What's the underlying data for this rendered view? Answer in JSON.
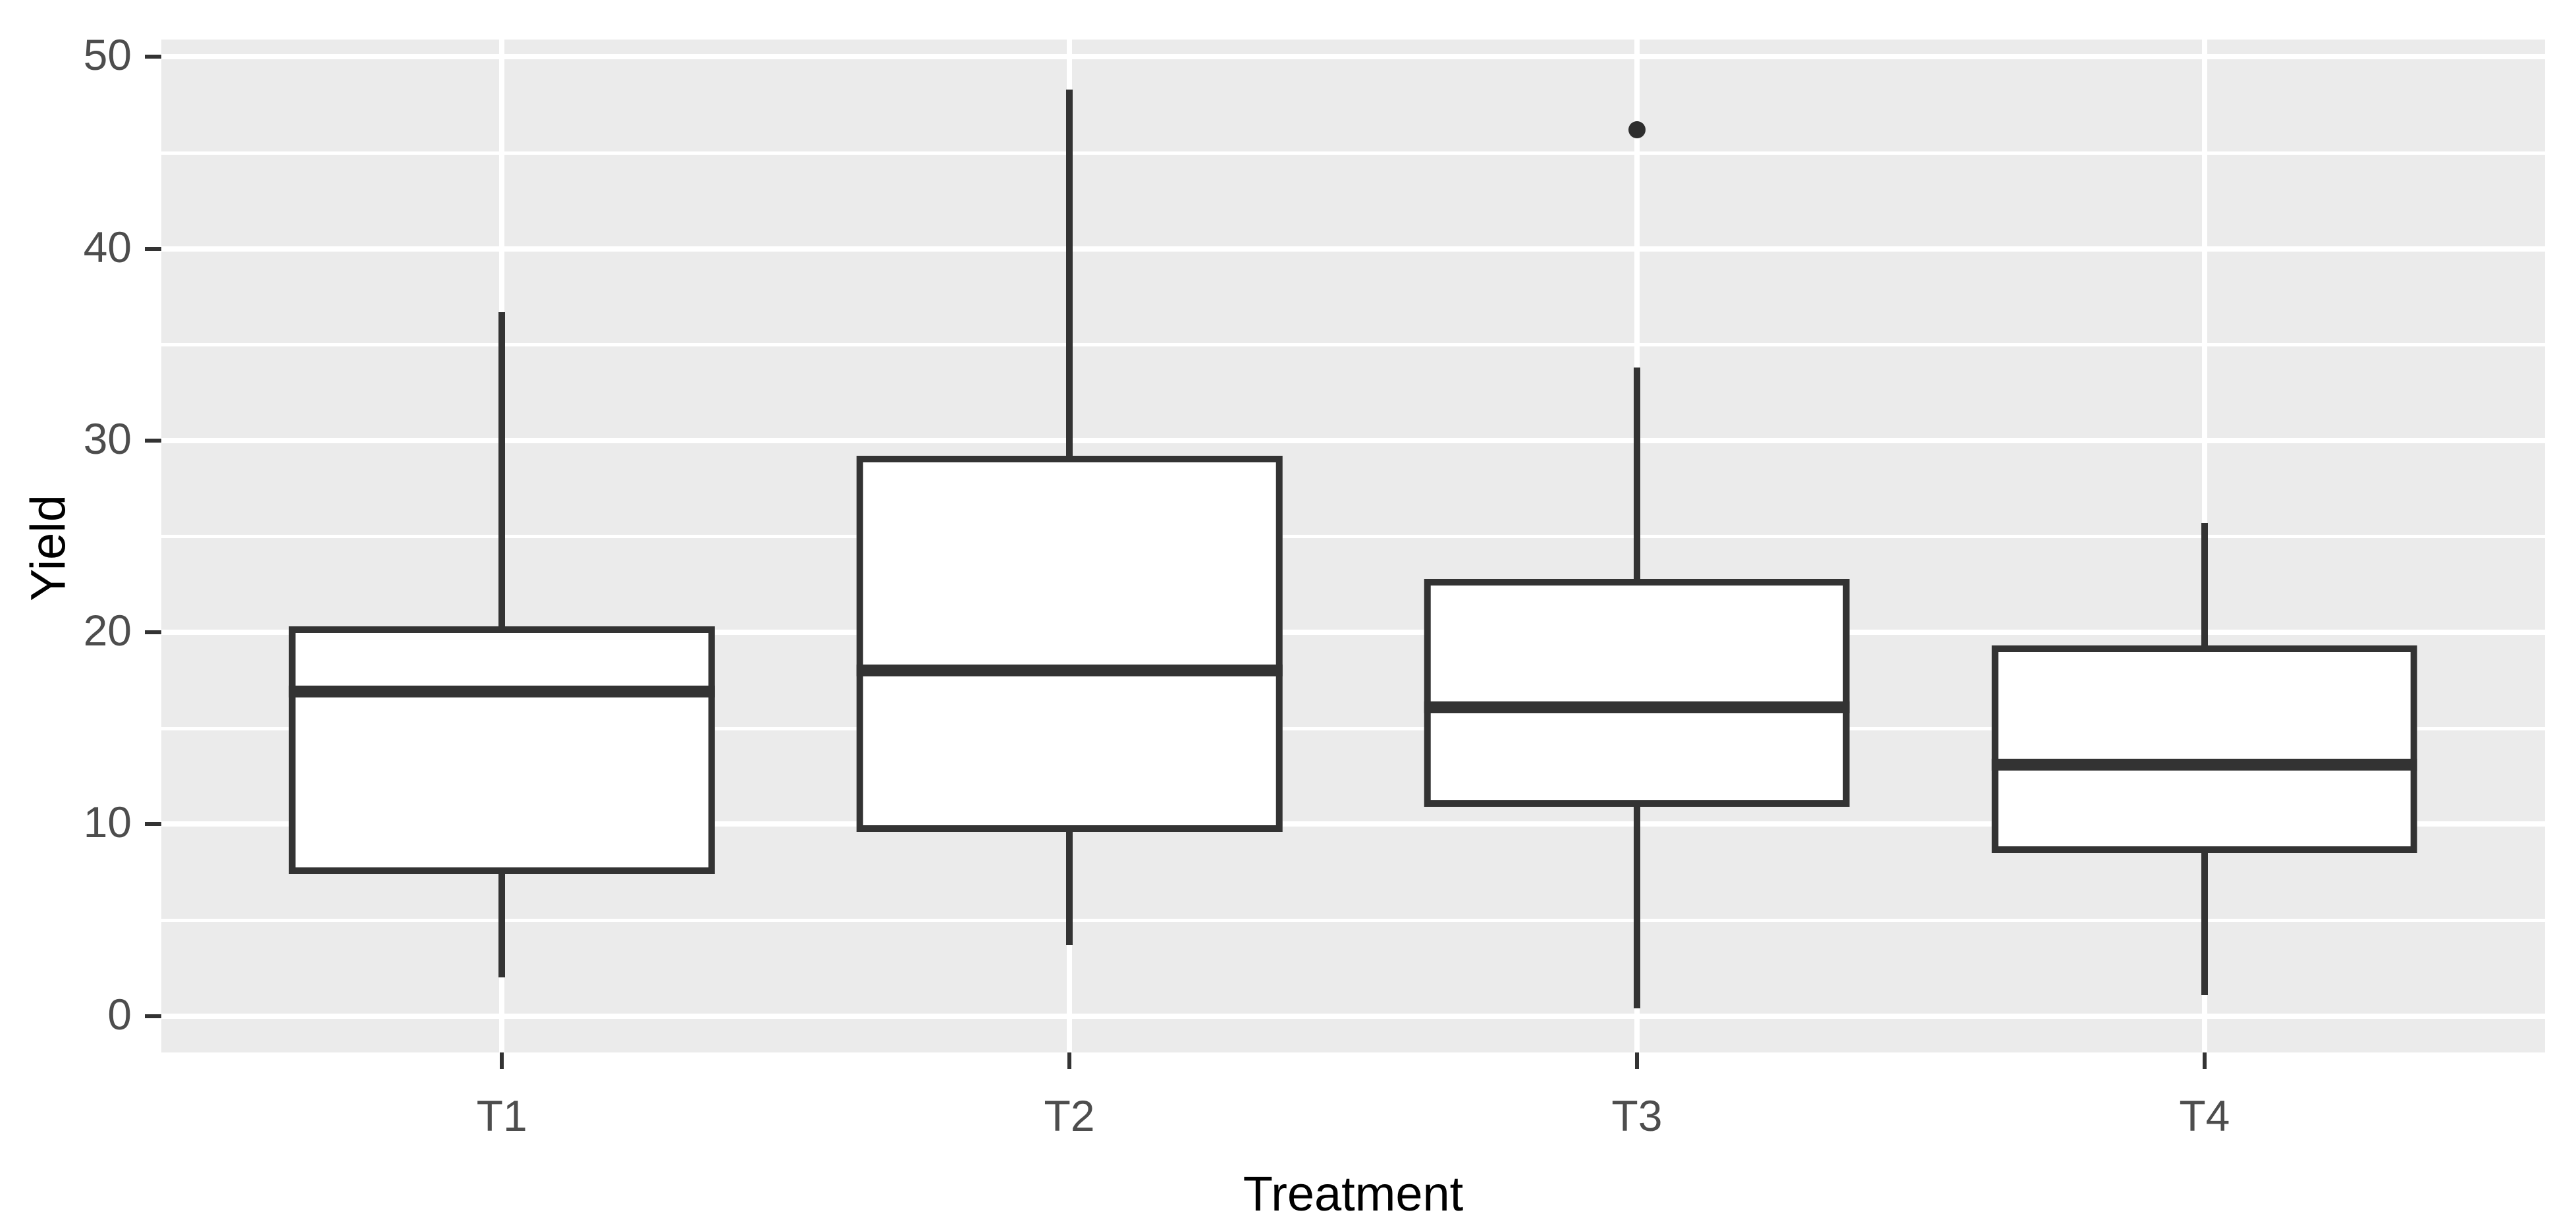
{
  "chart_data": {
    "type": "boxplot",
    "title": "",
    "xlabel": "Treatment",
    "ylabel": "Yield",
    "categories": [
      "T1",
      "T2",
      "T3",
      "T4"
    ],
    "series": [
      {
        "name": "T1",
        "min": 2.0,
        "q1": 7.4,
        "median": 16.9,
        "q3": 20.3,
        "max": 36.7,
        "outliers": []
      },
      {
        "name": "T2",
        "min": 3.7,
        "q1": 9.6,
        "median": 18.0,
        "q3": 29.2,
        "max": 48.3,
        "outliers": []
      },
      {
        "name": "T3",
        "min": 0.4,
        "q1": 10.9,
        "median": 16.1,
        "q3": 22.8,
        "max": 33.8,
        "outliers": [
          46.2
        ]
      },
      {
        "name": "T4",
        "min": 1.1,
        "q1": 8.5,
        "median": 13.1,
        "q3": 19.3,
        "max": 25.7,
        "outliers": []
      }
    ],
    "y_major_ticks": [
      0,
      10,
      20,
      30,
      40,
      50
    ],
    "y_minor_ticks": [
      5,
      15,
      25,
      35,
      45
    ],
    "y_tick_labels": [
      "0",
      "10",
      "20",
      "30",
      "40",
      "50"
    ],
    "ylim": [
      -1.9,
      50.9
    ],
    "box_width_frac": 0.1786,
    "grid": true,
    "legend": false,
    "colors": {
      "panel_background": "#EBEBEB",
      "gridline": "#FFFFFF",
      "box_border": "#333333",
      "box_fill": "#FFFFFF",
      "median": "#333333",
      "outlier": "#2E2E2E",
      "tick_label": "#4D4D4D",
      "axis_title": "#000000",
      "figure_background": "#FFFFFF"
    }
  }
}
